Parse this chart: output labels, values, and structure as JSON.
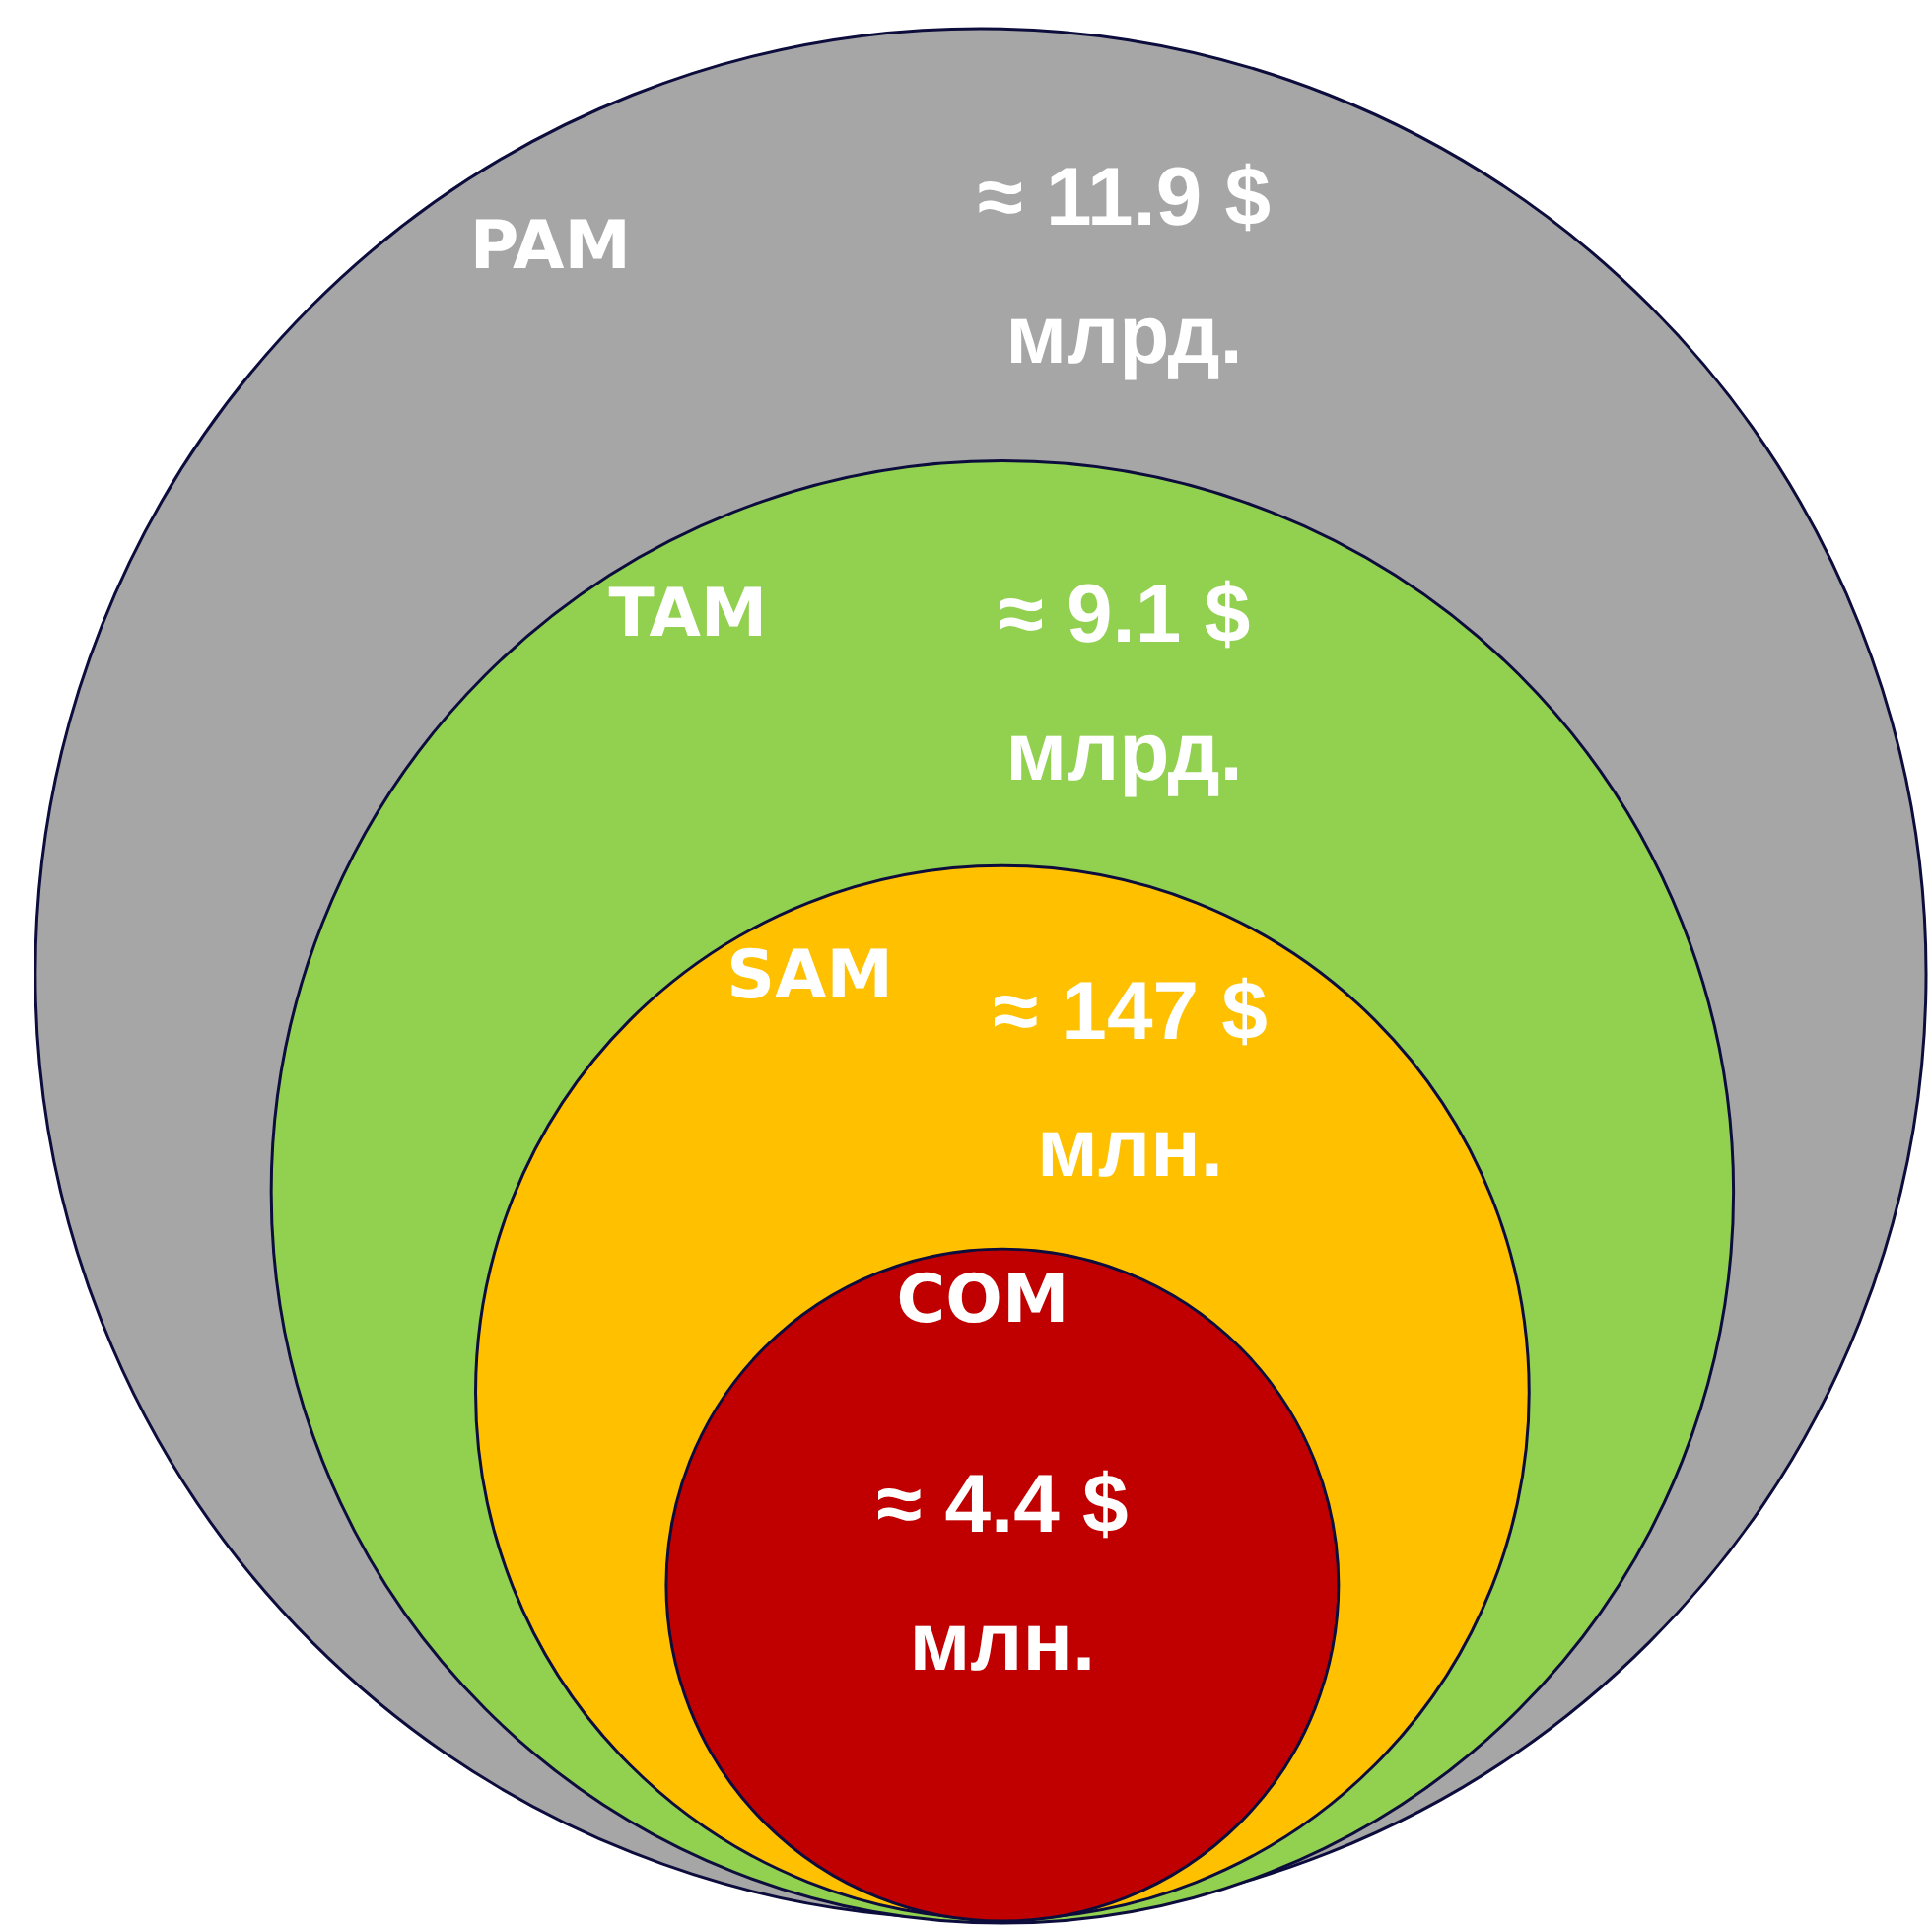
{
  "chart_data": {
    "type": "other",
    "categories": [
      "PAM",
      "TAM",
      "SAM",
      "COM"
    ],
    "values": [
      11.9,
      9.1,
      147,
      4.4
    ],
    "value_labels": [
      "≈ 11.9 $ млрд.",
      "≈ 9.1 $ млрд.",
      "≈ 147 $ млн.",
      "≈ 4.4 $ млн."
    ],
    "colors": [
      "#a6a6a6",
      "#92d050",
      "#ffc000",
      "#c00000"
    ]
  }
}
